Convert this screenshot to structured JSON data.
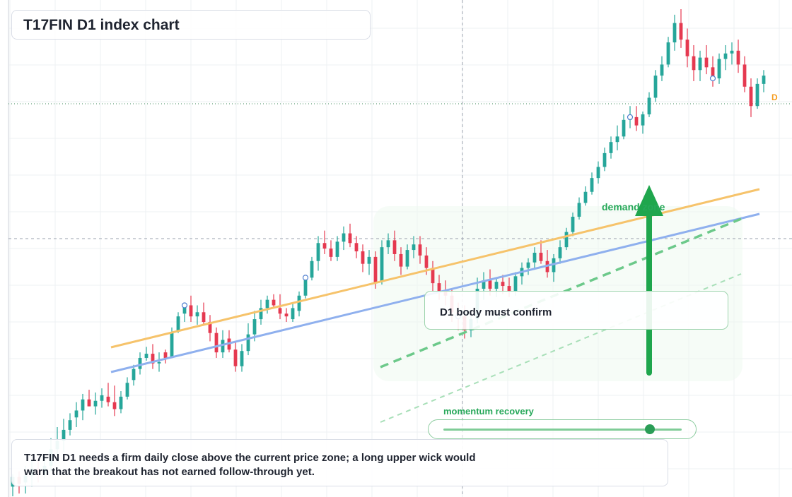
{
  "title": "T17FIN D1 index chart",
  "note": "T17FIN D1 needs a firm daily close above the current price zone; a long upper wick would warn that the breakout has not earned follow-through yet.",
  "confirm_label": "D1 body must confirm",
  "zone_label": "demand zone",
  "slider": {
    "label": "momentum recovery",
    "value": 0.86
  },
  "badge": "D",
  "colors": {
    "up": "#26a69a",
    "down": "#e53950",
    "trend_orange": "#f6c36b",
    "trend_blue": "#8fb0ee",
    "accent_green": "#1fa64d",
    "zone_fill": "#eef9f0"
  },
  "chart_data": {
    "type": "candlestick",
    "series": [
      {
        "o": -23,
        "h": -14,
        "l": -30,
        "c": -16
      },
      {
        "o": -16,
        "h": -12,
        "l": -28,
        "c": -21
      },
      {
        "o": -20,
        "h": -8,
        "l": -28,
        "c": -15
      },
      {
        "o": -15,
        "h": -4,
        "l": -23,
        "c": -10
      },
      {
        "o": -10,
        "h": -3,
        "l": -20,
        "c": -13
      },
      {
        "o": -14,
        "h": -2,
        "l": -17,
        "c": -8
      },
      {
        "o": -8,
        "h": 12,
        "l": -12,
        "c": 4
      },
      {
        "o": 4,
        "h": 20,
        "l": -2,
        "c": 10
      },
      {
        "o": 10,
        "h": 26,
        "l": 2,
        "c": 18
      },
      {
        "o": 18,
        "h": 30,
        "l": 14,
        "c": 25
      },
      {
        "o": 27,
        "h": 38,
        "l": 20,
        "c": 32
      },
      {
        "o": 32,
        "h": 44,
        "l": 25,
        "c": 40
      },
      {
        "o": 40,
        "h": 47,
        "l": 35,
        "c": 35
      },
      {
        "o": 35,
        "h": 45,
        "l": 29,
        "c": 39
      },
      {
        "o": 39,
        "h": 48,
        "l": 34,
        "c": 43
      },
      {
        "o": 42,
        "h": 52,
        "l": 35,
        "c": 38
      },
      {
        "o": 38,
        "h": 50,
        "l": 28,
        "c": 33
      },
      {
        "o": 33,
        "h": 46,
        "l": 30,
        "c": 42
      },
      {
        "o": 42,
        "h": 56,
        "l": 40,
        "c": 52
      },
      {
        "o": 54,
        "h": 65,
        "l": 50,
        "c": 62
      },
      {
        "o": 62,
        "h": 74,
        "l": 58,
        "c": 70
      },
      {
        "o": 70,
        "h": 78,
        "l": 68,
        "c": 73
      },
      {
        "o": 73,
        "h": 80,
        "l": 62,
        "c": 66
      },
      {
        "o": 66,
        "h": 74,
        "l": 60,
        "c": 67
      },
      {
        "o": 74,
        "h": 76,
        "l": 66,
        "c": 70
      },
      {
        "o": 71,
        "h": 92,
        "l": 70,
        "c": 88
      },
      {
        "o": 89,
        "h": 103,
        "l": 88,
        "c": 100
      },
      {
        "o": 102,
        "h": 110,
        "l": 96,
        "c": 108
      },
      {
        "o": 108,
        "h": 115,
        "l": 96,
        "c": 100
      },
      {
        "o": 100,
        "h": 108,
        "l": 94,
        "c": 103
      },
      {
        "o": 103,
        "h": 110,
        "l": 94,
        "c": 96
      },
      {
        "o": 96,
        "h": 101,
        "l": 82,
        "c": 88
      },
      {
        "o": 88,
        "h": 92,
        "l": 70,
        "c": 74
      },
      {
        "o": 74,
        "h": 90,
        "l": 70,
        "c": 83
      },
      {
        "o": 84,
        "h": 90,
        "l": 74,
        "c": 76
      },
      {
        "o": 76,
        "h": 82,
        "l": 60,
        "c": 64
      },
      {
        "o": 64,
        "h": 80,
        "l": 60,
        "c": 75
      },
      {
        "o": 75,
        "h": 95,
        "l": 72,
        "c": 87
      },
      {
        "o": 87,
        "h": 104,
        "l": 82,
        "c": 98
      },
      {
        "o": 98,
        "h": 112,
        "l": 94,
        "c": 106
      },
      {
        "o": 106,
        "h": 115,
        "l": 102,
        "c": 112
      },
      {
        "o": 112,
        "h": 116,
        "l": 106,
        "c": 108
      },
      {
        "o": 106,
        "h": 116,
        "l": 98,
        "c": 102
      },
      {
        "o": 102,
        "h": 106,
        "l": 96,
        "c": 100
      },
      {
        "o": 98,
        "h": 110,
        "l": 96,
        "c": 106
      },
      {
        "o": 104,
        "h": 118,
        "l": 100,
        "c": 115
      },
      {
        "o": 115,
        "h": 130,
        "l": 113,
        "c": 128
      },
      {
        "o": 128,
        "h": 143,
        "l": 126,
        "c": 140
      },
      {
        "o": 140,
        "h": 158,
        "l": 133,
        "c": 153
      },
      {
        "o": 153,
        "h": 162,
        "l": 145,
        "c": 149
      },
      {
        "o": 149,
        "h": 155,
        "l": 140,
        "c": 143
      },
      {
        "o": 143,
        "h": 158,
        "l": 140,
        "c": 154
      },
      {
        "o": 154,
        "h": 165,
        "l": 148,
        "c": 160
      },
      {
        "o": 160,
        "h": 167,
        "l": 150,
        "c": 153
      },
      {
        "o": 153,
        "h": 158,
        "l": 142,
        "c": 147
      },
      {
        "o": 147,
        "h": 152,
        "l": 132,
        "c": 138
      },
      {
        "o": 138,
        "h": 148,
        "l": 130,
        "c": 143
      },
      {
        "o": 143,
        "h": 147,
        "l": 120,
        "c": 124
      },
      {
        "o": 125,
        "h": 155,
        "l": 123,
        "c": 150
      },
      {
        "o": 150,
        "h": 160,
        "l": 145,
        "c": 155
      },
      {
        "o": 155,
        "h": 162,
        "l": 140,
        "c": 145
      },
      {
        "o": 145,
        "h": 150,
        "l": 130,
        "c": 136
      },
      {
        "o": 136,
        "h": 152,
        "l": 134,
        "c": 148
      },
      {
        "o": 148,
        "h": 158,
        "l": 142,
        "c": 152
      },
      {
        "o": 152,
        "h": 158,
        "l": 138,
        "c": 144
      },
      {
        "o": 144,
        "h": 150,
        "l": 130,
        "c": 135
      },
      {
        "o": 135,
        "h": 140,
        "l": 118,
        "c": 124
      },
      {
        "o": 124,
        "h": 130,
        "l": 112,
        "c": 118
      },
      {
        "o": 118,
        "h": 126,
        "l": 108,
        "c": 115
      },
      {
        "o": 115,
        "h": 120,
        "l": 96,
        "c": 103
      },
      {
        "o": 103,
        "h": 110,
        "l": 90,
        "c": 100
      },
      {
        "o": 100,
        "h": 108,
        "l": 84,
        "c": 90
      },
      {
        "o": 90,
        "h": 100,
        "l": 85,
        "c": 98
      },
      {
        "o": 98,
        "h": 128,
        "l": 95,
        "c": 120
      },
      {
        "o": 120,
        "h": 132,
        "l": 112,
        "c": 126
      },
      {
        "o": 126,
        "h": 134,
        "l": 115,
        "c": 120
      },
      {
        "o": 120,
        "h": 128,
        "l": 114,
        "c": 125
      },
      {
        "o": 125,
        "h": 130,
        "l": 116,
        "c": 122
      },
      {
        "o": 122,
        "h": 128,
        "l": 114,
        "c": 118
      },
      {
        "o": 118,
        "h": 132,
        "l": 115,
        "c": 129
      },
      {
        "o": 129,
        "h": 139,
        "l": 123,
        "c": 135
      },
      {
        "o": 135,
        "h": 142,
        "l": 130,
        "c": 139
      },
      {
        "o": 139,
        "h": 150,
        "l": 135,
        "c": 146
      },
      {
        "o": 146,
        "h": 155,
        "l": 138,
        "c": 140
      },
      {
        "o": 140,
        "h": 148,
        "l": 128,
        "c": 132
      },
      {
        "o": 132,
        "h": 145,
        "l": 125,
        "c": 142
      },
      {
        "o": 142,
        "h": 155,
        "l": 138,
        "c": 150
      },
      {
        "o": 150,
        "h": 164,
        "l": 148,
        "c": 161
      },
      {
        "o": 161,
        "h": 175,
        "l": 158,
        "c": 172
      },
      {
        "o": 172,
        "h": 186,
        "l": 170,
        "c": 182
      },
      {
        "o": 182,
        "h": 194,
        "l": 180,
        "c": 190
      },
      {
        "o": 190,
        "h": 204,
        "l": 188,
        "c": 200
      },
      {
        "o": 200,
        "h": 212,
        "l": 196,
        "c": 208
      },
      {
        "o": 208,
        "h": 222,
        "l": 205,
        "c": 218
      },
      {
        "o": 218,
        "h": 230,
        "l": 214,
        "c": 226
      },
      {
        "o": 226,
        "h": 238,
        "l": 220,
        "c": 230
      },
      {
        "o": 230,
        "h": 246,
        "l": 228,
        "c": 242
      },
      {
        "o": 242,
        "h": 252,
        "l": 236,
        "c": 244
      },
      {
        "o": 244,
        "h": 252,
        "l": 234,
        "c": 238
      },
      {
        "o": 238,
        "h": 248,
        "l": 232,
        "c": 246
      },
      {
        "o": 246,
        "h": 262,
        "l": 244,
        "c": 258
      },
      {
        "o": 258,
        "h": 278,
        "l": 255,
        "c": 274
      },
      {
        "o": 274,
        "h": 288,
        "l": 270,
        "c": 282
      },
      {
        "o": 282,
        "h": 302,
        "l": 280,
        "c": 298
      },
      {
        "o": 298,
        "h": 318,
        "l": 292,
        "c": 312
      },
      {
        "o": 312,
        "h": 322,
        "l": 294,
        "c": 300
      },
      {
        "o": 300,
        "h": 308,
        "l": 280,
        "c": 288
      },
      {
        "o": 288,
        "h": 296,
        "l": 270,
        "c": 278
      },
      {
        "o": 278,
        "h": 292,
        "l": 270,
        "c": 287
      },
      {
        "o": 287,
        "h": 296,
        "l": 275,
        "c": 280
      },
      {
        "o": 280,
        "h": 288,
        "l": 266,
        "c": 272
      },
      {
        "o": 272,
        "h": 290,
        "l": 268,
        "c": 286
      },
      {
        "o": 286,
        "h": 296,
        "l": 278,
        "c": 290
      },
      {
        "o": 290,
        "h": 298,
        "l": 282,
        "c": 292
      },
      {
        "o": 292,
        "h": 300,
        "l": 276,
        "c": 282
      },
      {
        "o": 282,
        "h": 288,
        "l": 262,
        "c": 266
      },
      {
        "o": 266,
        "h": 272,
        "l": 244,
        "c": 252
      },
      {
        "o": 252,
        "h": 272,
        "l": 250,
        "c": 268
      },
      {
        "o": 268,
        "h": 278,
        "l": 262,
        "c": 274
      }
    ]
  }
}
